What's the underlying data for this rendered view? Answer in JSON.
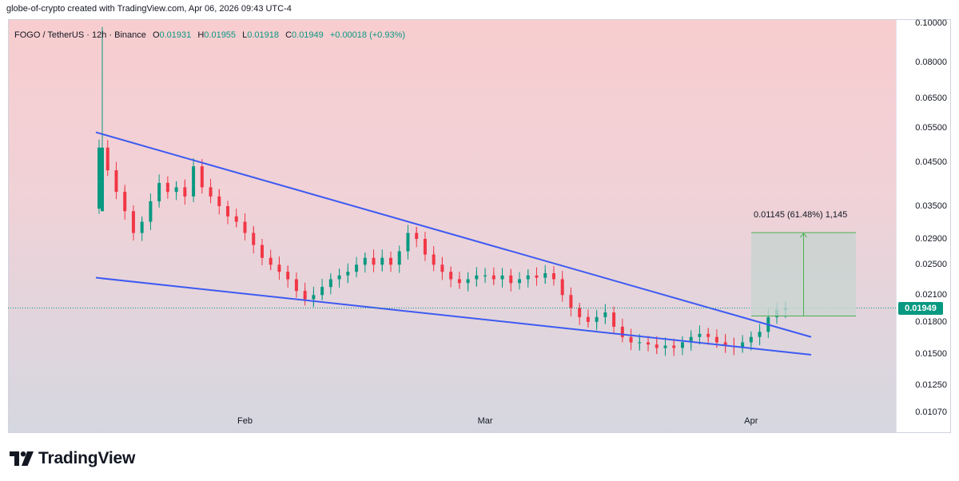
{
  "header": {
    "attribution": "globe-of-crypto created with TradingView.com, Apr 06, 2026 09:43 UTC-4"
  },
  "legend": {
    "symbol": "FOGO / TetherUS · 12h · Binance",
    "o_label": "O",
    "o_value": "0.01931",
    "h_label": "H",
    "h_value": "0.01955",
    "l_label": "L",
    "l_value": "0.01918",
    "c_label": "C",
    "c_value": "0.01949",
    "change": "+0.00018 (+0.93%)"
  },
  "current_price": "0.01949",
  "measure": {
    "label": "0.01145 (61.48%) 1,145",
    "from": 0.01862,
    "to": 0.03007
  },
  "brand": {
    "name": "TradingView"
  },
  "colors": {
    "up": "#089981",
    "down": "#f23645",
    "trendline": "#3d5af1",
    "measure_fill": "#c8d5d1",
    "measure_line": "#4caf50"
  },
  "chart_data": {
    "type": "candlestick",
    "title": "FOGO / TetherUS · 12h · Binance",
    "y_scale": "log",
    "ylim": [
      0.0095,
      0.1025
    ],
    "y_ticks": [
      "0.10000",
      "0.08000",
      "0.06500",
      "0.05500",
      "0.04500",
      "0.03500",
      "0.02900",
      "0.02500",
      "0.02100",
      "0.01800",
      "0.01500",
      "0.01250",
      "0.01070"
    ],
    "x_ticks": [
      {
        "label": "Feb",
        "date": "2026-02-01"
      },
      {
        "label": "Mar",
        "date": "2026-03-01"
      },
      {
        "label": "Apr",
        "date": "2026-04-01"
      }
    ],
    "close_series": [
      [
        "2026-01-15",
        0.049
      ],
      [
        "2026-01-16",
        0.043
      ],
      [
        "2026-01-17",
        0.038
      ],
      [
        "2026-01-18",
        0.034
      ],
      [
        "2026-01-19",
        0.03
      ],
      [
        "2026-01-20",
        0.032
      ],
      [
        "2026-01-21",
        0.036
      ],
      [
        "2026-01-22",
        0.04
      ],
      [
        "2026-01-23",
        0.038
      ],
      [
        "2026-01-24",
        0.039
      ],
      [
        "2026-01-25",
        0.037
      ],
      [
        "2026-01-26",
        0.044
      ],
      [
        "2026-01-27",
        0.039
      ],
      [
        "2026-01-28",
        0.037
      ],
      [
        "2026-01-29",
        0.035
      ],
      [
        "2026-01-30",
        0.033
      ],
      [
        "2026-01-31",
        0.032
      ],
      [
        "2026-02-01",
        0.03
      ],
      [
        "2026-02-02",
        0.028
      ],
      [
        "2026-02-03",
        0.026
      ],
      [
        "2026-02-04",
        0.025
      ],
      [
        "2026-02-05",
        0.024
      ],
      [
        "2026-02-06",
        0.023
      ],
      [
        "2026-02-07",
        0.0215
      ],
      [
        "2026-02-08",
        0.0205
      ],
      [
        "2026-02-09",
        0.021
      ],
      [
        "2026-02-10",
        0.022
      ],
      [
        "2026-02-11",
        0.023
      ],
      [
        "2026-02-12",
        0.0235
      ],
      [
        "2026-02-13",
        0.024
      ],
      [
        "2026-02-14",
        0.025
      ],
      [
        "2026-02-15",
        0.026
      ],
      [
        "2026-02-16",
        0.025
      ],
      [
        "2026-02-17",
        0.026
      ],
      [
        "2026-02-18",
        0.025
      ],
      [
        "2026-02-19",
        0.027
      ],
      [
        "2026-02-20",
        0.03
      ],
      [
        "2026-02-21",
        0.029
      ],
      [
        "2026-02-22",
        0.0265
      ],
      [
        "2026-02-23",
        0.025
      ],
      [
        "2026-02-24",
        0.024
      ],
      [
        "2026-02-25",
        0.023
      ],
      [
        "2026-02-26",
        0.0225
      ],
      [
        "2026-02-27",
        0.023
      ],
      [
        "2026-02-28",
        0.0235
      ],
      [
        "2026-03-01",
        0.0235
      ],
      [
        "2026-03-02",
        0.023
      ],
      [
        "2026-03-03",
        0.0235
      ],
      [
        "2026-03-04",
        0.0225
      ],
      [
        "2026-03-05",
        0.023
      ],
      [
        "2026-03-06",
        0.0235
      ],
      [
        "2026-03-07",
        0.0232
      ],
      [
        "2026-03-08",
        0.0238
      ],
      [
        "2026-03-09",
        0.023
      ],
      [
        "2026-03-10",
        0.021
      ],
      [
        "2026-03-11",
        0.0195
      ],
      [
        "2026-03-12",
        0.0185
      ],
      [
        "2026-03-13",
        0.018
      ],
      [
        "2026-03-14",
        0.0185
      ],
      [
        "2026-03-15",
        0.019
      ],
      [
        "2026-03-16",
        0.0175
      ],
      [
        "2026-03-17",
        0.0165
      ],
      [
        "2026-03-18",
        0.016
      ],
      [
        "2026-03-19",
        0.016
      ],
      [
        "2026-03-20",
        0.0158
      ],
      [
        "2026-03-21",
        0.0155
      ],
      [
        "2026-03-22",
        0.0157
      ],
      [
        "2026-03-23",
        0.0155
      ],
      [
        "2026-03-24",
        0.016
      ],
      [
        "2026-03-25",
        0.0165
      ],
      [
        "2026-03-26",
        0.0168
      ],
      [
        "2026-03-27",
        0.0165
      ],
      [
        "2026-03-28",
        0.016
      ],
      [
        "2026-03-29",
        0.0157
      ],
      [
        "2026-03-30",
        0.0156
      ],
      [
        "2026-03-31",
        0.016
      ],
      [
        "2026-04-01",
        0.0165
      ],
      [
        "2026-04-02",
        0.017
      ],
      [
        "2026-04-03",
        0.0185
      ],
      [
        "2026-04-04",
        0.0193
      ],
      [
        "2026-04-05",
        0.01949
      ]
    ],
    "trendlines": [
      {
        "name": "upper",
        "from": [
          "2026-01-15",
          0.0535
        ],
        "to": [
          "2026-04-08",
          0.0165
        ]
      },
      {
        "name": "lower",
        "from": [
          "2026-01-15",
          0.0232
        ],
        "to": [
          "2026-04-08",
          0.0149
        ]
      }
    ]
  }
}
